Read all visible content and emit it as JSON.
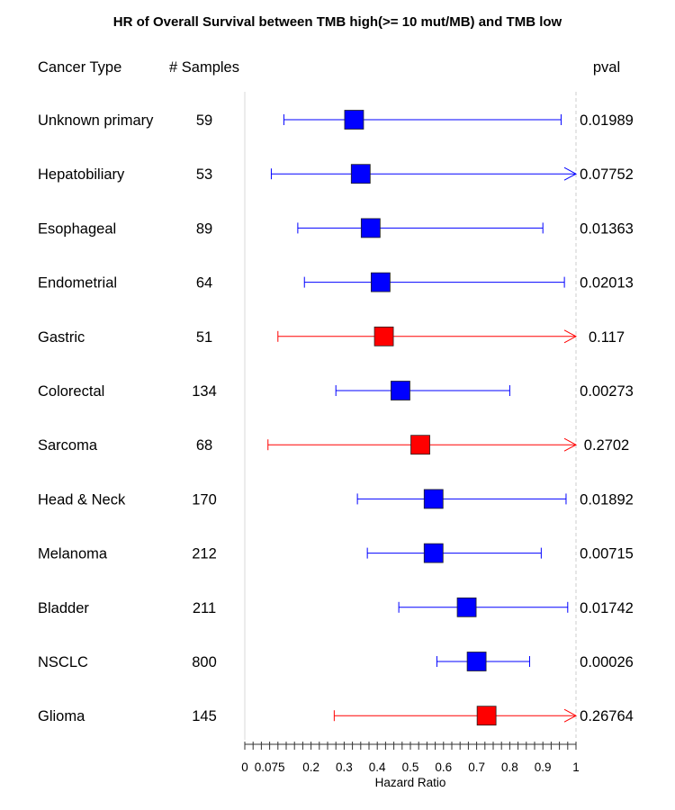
{
  "chart_data": {
    "type": "forest",
    "title": "HR of Overall Survival between TMB high(>= 10 mut/MB) and TMB low",
    "columns": {
      "cancer_type": "Cancer Type",
      "samples": "# Samples",
      "pval": "pval"
    },
    "xlabel": "Hazard Ratio",
    "xlim": [
      0,
      1
    ],
    "xticks": [
      0,
      0.075,
      0.2,
      0.3,
      0.4,
      0.5,
      0.6,
      0.7,
      0.8,
      0.9,
      1
    ],
    "xtick_labels": [
      "0",
      "0.075",
      "0.2",
      "0.3",
      "0.4",
      "0.5",
      "0.6",
      "0.7",
      "0.8",
      "0.9",
      "1"
    ],
    "minor_tick_step": 0.025,
    "reference_line": 1,
    "colors": {
      "significant": "#0000ff",
      "not_significant": "#ff0000",
      "axis": "#333333",
      "frame": "#d9d9d9"
    },
    "rows": [
      {
        "cancer_type": "Unknown primary",
        "samples": "59",
        "hr": 0.33,
        "lower": 0.118,
        "upper": 0.955,
        "upper_arrow": false,
        "pval": "0.01989",
        "significant": true
      },
      {
        "cancer_type": "Hepatobiliary",
        "samples": "53",
        "hr": 0.35,
        "lower": 0.08,
        "upper": 1.0,
        "upper_arrow": true,
        "pval": "0.07752",
        "significant": true
      },
      {
        "cancer_type": "Esophageal",
        "samples": "89",
        "hr": 0.38,
        "lower": 0.16,
        "upper": 0.9,
        "upper_arrow": false,
        "pval": "0.01363",
        "significant": true
      },
      {
        "cancer_type": "Endometrial",
        "samples": "64",
        "hr": 0.41,
        "lower": 0.18,
        "upper": 0.965,
        "upper_arrow": false,
        "pval": "0.02013",
        "significant": true
      },
      {
        "cancer_type": "Gastric",
        "samples": "51",
        "hr": 0.42,
        "lower": 0.1,
        "upper": 1.0,
        "upper_arrow": true,
        "pval": "0.117",
        "significant": false
      },
      {
        "cancer_type": "Colorectal",
        "samples": "134",
        "hr": 0.47,
        "lower": 0.275,
        "upper": 0.8,
        "upper_arrow": false,
        "pval": "0.00273",
        "significant": true
      },
      {
        "cancer_type": "Sarcoma",
        "samples": "68",
        "hr": 0.53,
        "lower": 0.07,
        "upper": 1.0,
        "upper_arrow": true,
        "pval": "0.2702",
        "significant": false
      },
      {
        "cancer_type": "Head & Neck",
        "samples": "170",
        "hr": 0.57,
        "lower": 0.34,
        "upper": 0.97,
        "upper_arrow": false,
        "pval": "0.01892",
        "significant": true
      },
      {
        "cancer_type": "Melanoma",
        "samples": "212",
        "hr": 0.57,
        "lower": 0.37,
        "upper": 0.895,
        "upper_arrow": false,
        "pval": "0.00715",
        "significant": true
      },
      {
        "cancer_type": "Bladder",
        "samples": "211",
        "hr": 0.67,
        "lower": 0.465,
        "upper": 0.975,
        "upper_arrow": false,
        "pval": "0.01742",
        "significant": true
      },
      {
        "cancer_type": "NSCLC",
        "samples": "800",
        "hr": 0.7,
        "lower": 0.58,
        "upper": 0.86,
        "upper_arrow": false,
        "pval": "0.00026",
        "significant": true
      },
      {
        "cancer_type": "Glioma",
        "samples": "145",
        "hr": 0.73,
        "lower": 0.27,
        "upper": 1.0,
        "upper_arrow": true,
        "pval": "0.26764",
        "significant": false
      }
    ]
  }
}
